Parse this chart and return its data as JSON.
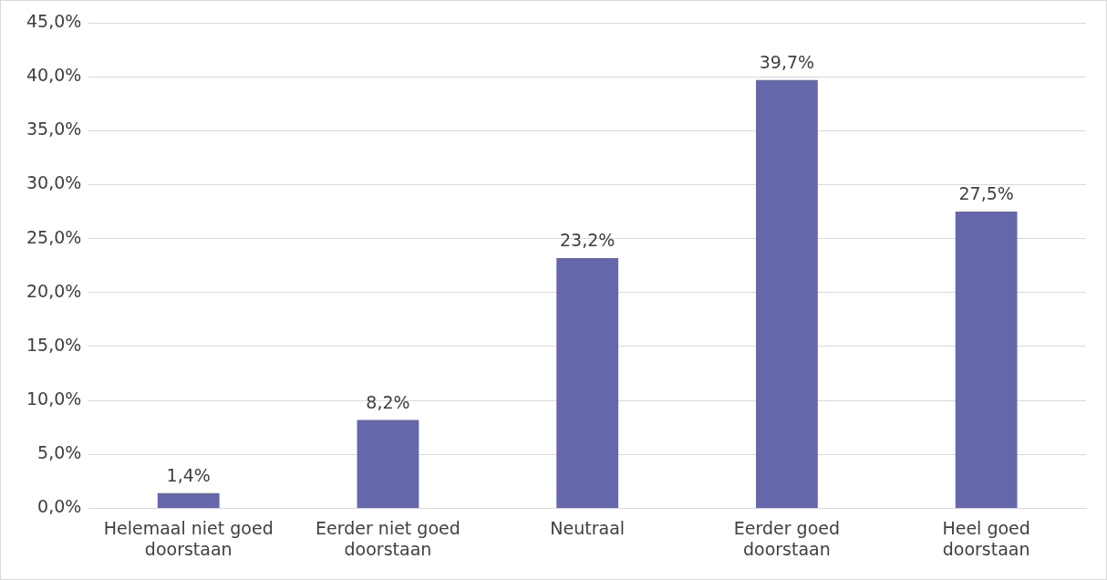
{
  "chart_data": {
    "type": "bar",
    "categories": [
      "Helemaal niet goed doorstaan",
      "Eerder niet goed doorstaan",
      "Neutraal",
      "Eerder goed doorstaan",
      "Heel goed doorstaan"
    ],
    "values": [
      1.4,
      8.2,
      23.2,
      39.7,
      27.5
    ],
    "value_labels": [
      "1,4%",
      "8,2%",
      "23,2%",
      "39,7%",
      "27,5%"
    ],
    "color": "#6667ab",
    "ylim": [
      0,
      45
    ],
    "yticks": [
      {
        "value": 0,
        "label": "0,0%"
      },
      {
        "value": 5,
        "label": "5,0%"
      },
      {
        "value": 10,
        "label": "10,0%"
      },
      {
        "value": 15,
        "label": "15,0%"
      },
      {
        "value": 20,
        "label": "20,0%"
      },
      {
        "value": 25,
        "label": "25,0%"
      },
      {
        "value": 30,
        "label": "30,0%"
      },
      {
        "value": 35,
        "label": "35,0%"
      },
      {
        "value": 40,
        "label": "40,0%"
      },
      {
        "value": 45,
        "label": "45,0%"
      }
    ],
    "grid": "y"
  }
}
